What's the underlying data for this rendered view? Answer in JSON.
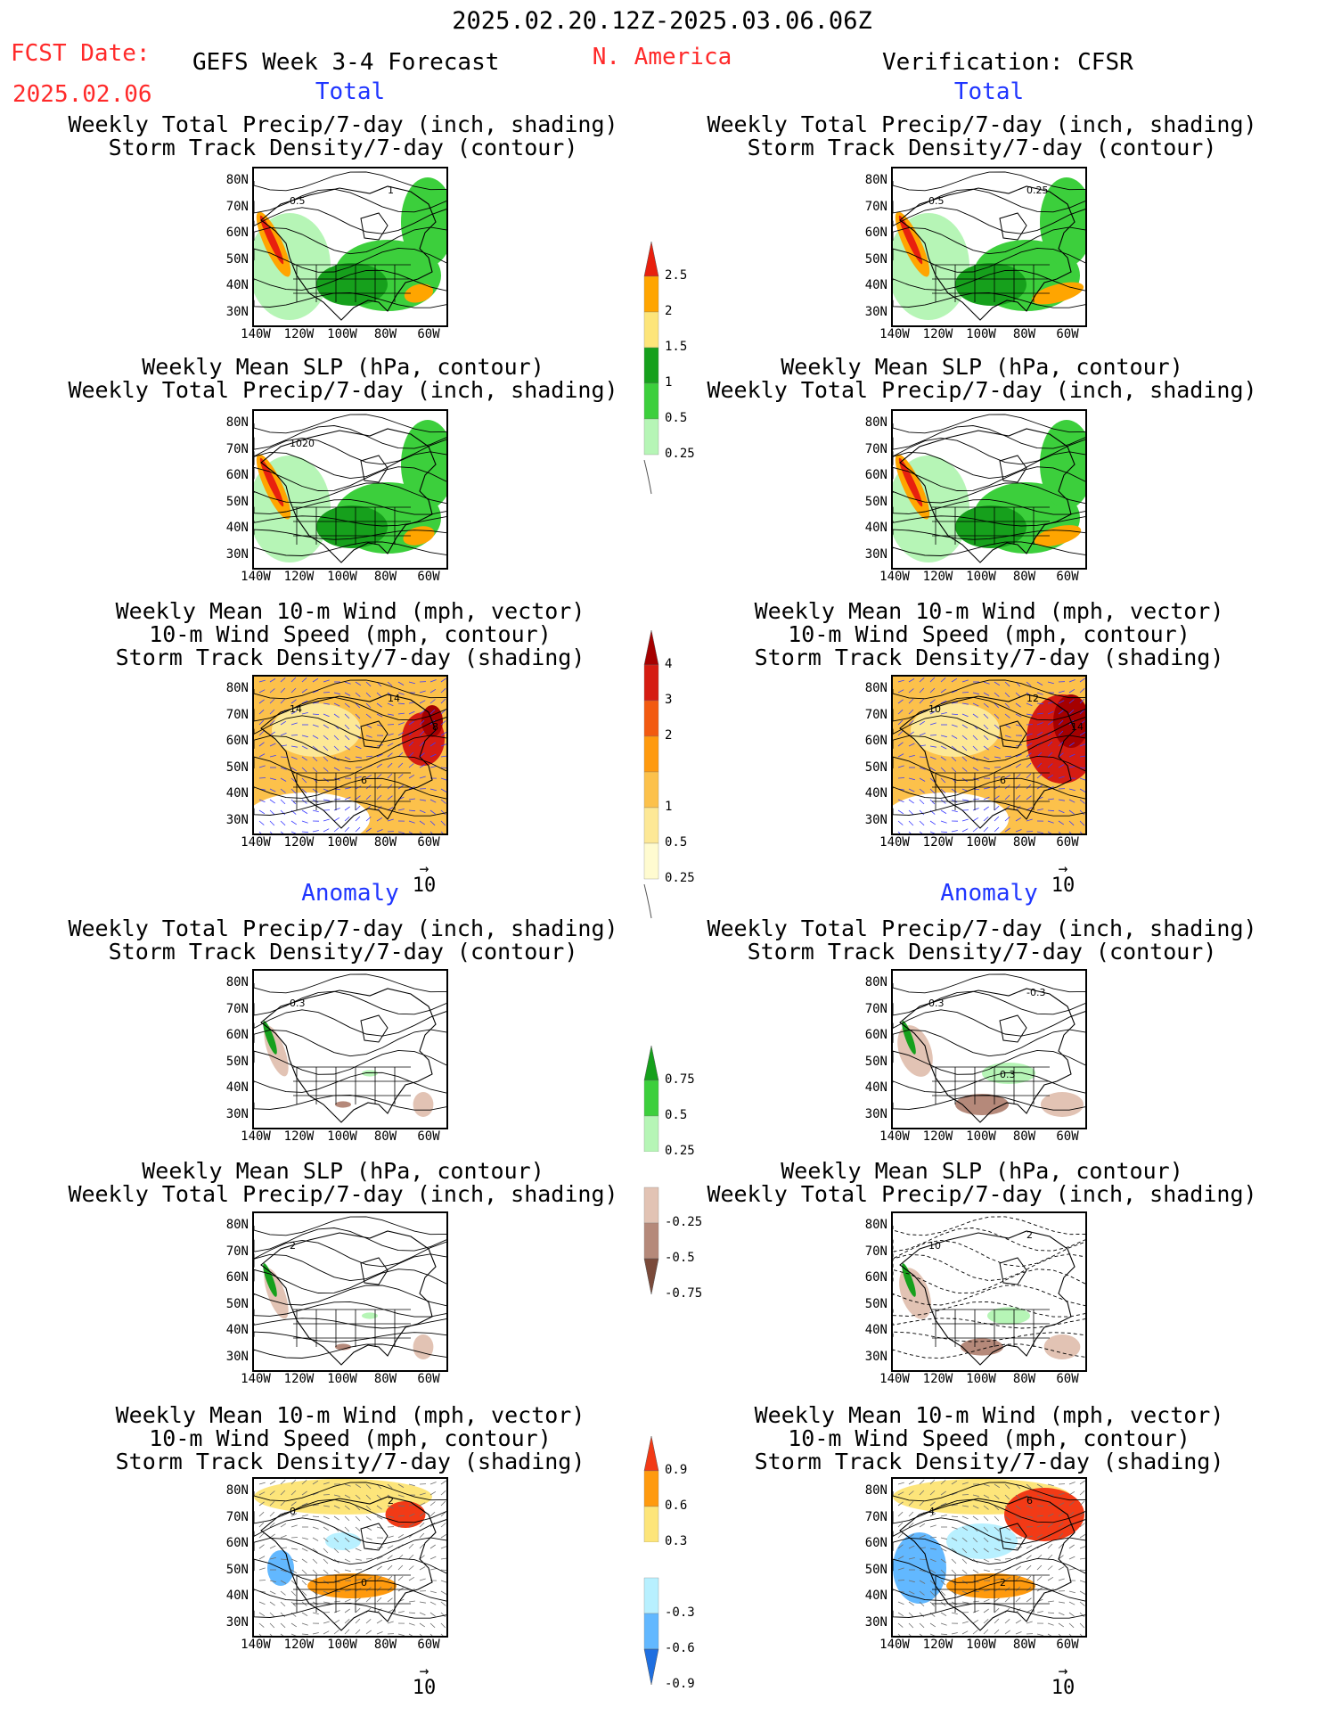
{
  "header": {
    "date_range": "2025.02.20.12Z-2025.03.06.06Z",
    "fcst_label": "FCST Date:",
    "fcst_date": "2025.02.06",
    "left_title": "GEFS Week 3-4 Forecast",
    "region": "N. America",
    "right_title": "Verification: CFSR"
  },
  "sections": {
    "total": "Total",
    "anomaly": "Anomaly"
  },
  "titles": {
    "precip_storm": [
      "Weekly Total Precip/7-day (inch, shading)",
      "Storm Track Density/7-day (contour)"
    ],
    "slp_precip": [
      "Weekly Mean SLP (hPa, contour)",
      "Weekly Total Precip/7-day (inch, shading)"
    ],
    "wind_storm": [
      "Weekly Mean 10-m Wind (mph, vector)",
      "10-m Wind Speed (mph, contour)",
      "Storm Track Density/7-day (shading)"
    ]
  },
  "axes": {
    "lat": [
      "80N",
      "70N",
      "60N",
      "50N",
      "40N",
      "30N"
    ],
    "lon": [
      "140W",
      "120W",
      "100W",
      "80W",
      "60W"
    ]
  },
  "vector_ref": "10",
  "map_labels": {
    "p1": [
      "0.5",
      "1"
    ],
    "p2": [
      "0.5",
      "0.25"
    ],
    "p3": [
      "1020"
    ],
    "p5": [
      "14",
      "14",
      "6",
      "8"
    ],
    "p6": [
      "10",
      "12",
      "6",
      "14"
    ],
    "p7": [
      "0.3"
    ],
    "p8": [
      "0.3",
      "-0.3",
      "0.3"
    ],
    "p9": [
      "2"
    ],
    "p10": [
      "10",
      "2"
    ],
    "p11": [
      "0",
      "2",
      "0"
    ],
    "p12": [
      "4",
      "6",
      "2"
    ]
  },
  "colorbars": {
    "precip_total": {
      "labels": [
        "2.5",
        "2",
        "1.5",
        "1",
        "0.5",
        "0.25"
      ],
      "colors": [
        "#e8200e",
        "#ffa500",
        "#fde57a",
        "#16a01c",
        "#3ccf3c",
        "#b6f5b6"
      ]
    },
    "storm_total": {
      "labels": [
        "4",
        "3",
        "2",
        "1",
        "0.5",
        "0.25"
      ],
      "colors": [
        "#a50000",
        "#d51c12",
        "#f25a10",
        "#ff9a0e",
        "#fcc14b",
        "#fde896",
        "#fffbd0"
      ]
    },
    "precip_anom": {
      "labels": [
        "0.75",
        "0.5",
        "0.25",
        "-0.25",
        "-0.5",
        "-0.75"
      ],
      "colors": [
        "#16a01c",
        "#3ccf3c",
        "#b6f5b6",
        "#ffffff",
        "#e2c3b4",
        "#b5897a",
        "#7a4a3a"
      ]
    },
    "storm_anom": {
      "labels": [
        "0.9",
        "0.6",
        "0.3",
        "-0.3",
        "-0.6",
        "-0.9"
      ],
      "colors": [
        "#f23a16",
        "#ff9a0e",
        "#fde57a",
        "#ffffff",
        "#b8f0ff",
        "#62b8ff",
        "#1f6fe0"
      ]
    }
  },
  "colors": {
    "land_green": "#3ccf3c",
    "dark_green": "#16a01c",
    "light_green": "#b6f5b6",
    "orange": "#ffa500",
    "red": "#e8200e",
    "vector_blue": "#3a3aff"
  }
}
